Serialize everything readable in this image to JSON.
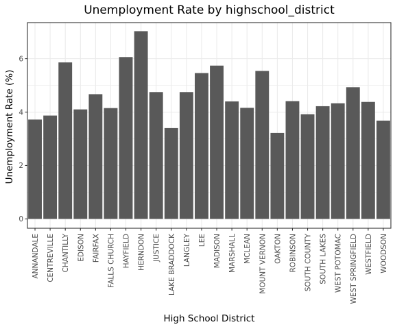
{
  "chart_data": {
    "type": "bar",
    "title": "Unemployment Rate by highschool_district",
    "xlabel": "High School District",
    "ylabel": "Unemployment Rate (%)",
    "categories": [
      "ANNANDALE",
      "CENTREVILLE",
      "CHANTILLY",
      "EDISON",
      "FAIRFAX",
      "FALLS CHURCH",
      "HAYFIELD",
      "HERNDON",
      "JUSTICE",
      "LAKE BRADDOCK",
      "LANGLEY",
      "LEE",
      "MADISON",
      "MARSHALL",
      "MCLEAN",
      "MOUNT VERNON",
      "OAKTON",
      "ROBINSON",
      "SOUTH COUNTY",
      "SOUTH LAKES",
      "WEST POTOMAC",
      "WEST SPRINGFIELD",
      "WESTFIELD",
      "WOODSON"
    ],
    "values": [
      3.72,
      3.87,
      5.86,
      4.1,
      4.67,
      4.15,
      6.06,
      7.03,
      4.75,
      3.4,
      4.75,
      5.46,
      5.74,
      4.4,
      4.16,
      5.54,
      3.22,
      4.41,
      3.92,
      4.22,
      4.33,
      4.93,
      4.38,
      3.68
    ],
    "ylim": [
      -0.35,
      7.35
    ],
    "yticks": [
      0,
      2,
      4,
      6
    ],
    "grid": true,
    "bar_color": "#595959",
    "grid_color": "#ebebeb",
    "panel_border_color": "#333333"
  }
}
